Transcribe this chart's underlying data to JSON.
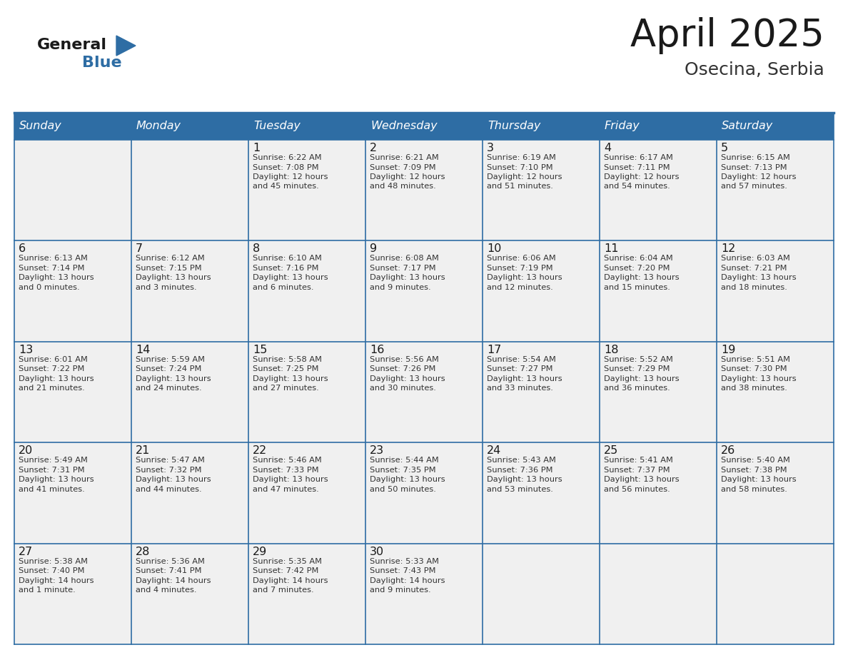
{
  "title": "April 2025",
  "subtitle": "Osecina, Serbia",
  "header_color": "#2E6DA4",
  "header_text_color": "#FFFFFF",
  "background_color": "#FFFFFF",
  "cell_bg_color": "#F0F0F0",
  "border_color": "#2E6DA4",
  "days_of_week": [
    "Sunday",
    "Monday",
    "Tuesday",
    "Wednesday",
    "Thursday",
    "Friday",
    "Saturday"
  ],
  "title_color": "#1a1a1a",
  "subtitle_color": "#333333",
  "cell_text_color": "#333333",
  "day_num_color": "#1a1a1a",
  "logo_general_color": "#1a1a1a",
  "logo_blue_color": "#2E6DA4",
  "logo_triangle_color": "#2E6DA4",
  "weeks": [
    [
      {
        "day": 0,
        "sunrise": "",
        "sunset": "",
        "daylight_l1": "",
        "daylight_l2": ""
      },
      {
        "day": 0,
        "sunrise": "",
        "sunset": "",
        "daylight_l1": "",
        "daylight_l2": ""
      },
      {
        "day": 1,
        "sunrise": "6:22 AM",
        "sunset": "7:08 PM",
        "daylight_l1": "Daylight: 12 hours",
        "daylight_l2": "and 45 minutes."
      },
      {
        "day": 2,
        "sunrise": "6:21 AM",
        "sunset": "7:09 PM",
        "daylight_l1": "Daylight: 12 hours",
        "daylight_l2": "and 48 minutes."
      },
      {
        "day": 3,
        "sunrise": "6:19 AM",
        "sunset": "7:10 PM",
        "daylight_l1": "Daylight: 12 hours",
        "daylight_l2": "and 51 minutes."
      },
      {
        "day": 4,
        "sunrise": "6:17 AM",
        "sunset": "7:11 PM",
        "daylight_l1": "Daylight: 12 hours",
        "daylight_l2": "and 54 minutes."
      },
      {
        "day": 5,
        "sunrise": "6:15 AM",
        "sunset": "7:13 PM",
        "daylight_l1": "Daylight: 12 hours",
        "daylight_l2": "and 57 minutes."
      }
    ],
    [
      {
        "day": 6,
        "sunrise": "6:13 AM",
        "sunset": "7:14 PM",
        "daylight_l1": "Daylight: 13 hours",
        "daylight_l2": "and 0 minutes."
      },
      {
        "day": 7,
        "sunrise": "6:12 AM",
        "sunset": "7:15 PM",
        "daylight_l1": "Daylight: 13 hours",
        "daylight_l2": "and 3 minutes."
      },
      {
        "day": 8,
        "sunrise": "6:10 AM",
        "sunset": "7:16 PM",
        "daylight_l1": "Daylight: 13 hours",
        "daylight_l2": "and 6 minutes."
      },
      {
        "day": 9,
        "sunrise": "6:08 AM",
        "sunset": "7:17 PM",
        "daylight_l1": "Daylight: 13 hours",
        "daylight_l2": "and 9 minutes."
      },
      {
        "day": 10,
        "sunrise": "6:06 AM",
        "sunset": "7:19 PM",
        "daylight_l1": "Daylight: 13 hours",
        "daylight_l2": "and 12 minutes."
      },
      {
        "day": 11,
        "sunrise": "6:04 AM",
        "sunset": "7:20 PM",
        "daylight_l1": "Daylight: 13 hours",
        "daylight_l2": "and 15 minutes."
      },
      {
        "day": 12,
        "sunrise": "6:03 AM",
        "sunset": "7:21 PM",
        "daylight_l1": "Daylight: 13 hours",
        "daylight_l2": "and 18 minutes."
      }
    ],
    [
      {
        "day": 13,
        "sunrise": "6:01 AM",
        "sunset": "7:22 PM",
        "daylight_l1": "Daylight: 13 hours",
        "daylight_l2": "and 21 minutes."
      },
      {
        "day": 14,
        "sunrise": "5:59 AM",
        "sunset": "7:24 PM",
        "daylight_l1": "Daylight: 13 hours",
        "daylight_l2": "and 24 minutes."
      },
      {
        "day": 15,
        "sunrise": "5:58 AM",
        "sunset": "7:25 PM",
        "daylight_l1": "Daylight: 13 hours",
        "daylight_l2": "and 27 minutes."
      },
      {
        "day": 16,
        "sunrise": "5:56 AM",
        "sunset": "7:26 PM",
        "daylight_l1": "Daylight: 13 hours",
        "daylight_l2": "and 30 minutes."
      },
      {
        "day": 17,
        "sunrise": "5:54 AM",
        "sunset": "7:27 PM",
        "daylight_l1": "Daylight: 13 hours",
        "daylight_l2": "and 33 minutes."
      },
      {
        "day": 18,
        "sunrise": "5:52 AM",
        "sunset": "7:29 PM",
        "daylight_l1": "Daylight: 13 hours",
        "daylight_l2": "and 36 minutes."
      },
      {
        "day": 19,
        "sunrise": "5:51 AM",
        "sunset": "7:30 PM",
        "daylight_l1": "Daylight: 13 hours",
        "daylight_l2": "and 38 minutes."
      }
    ],
    [
      {
        "day": 20,
        "sunrise": "5:49 AM",
        "sunset": "7:31 PM",
        "daylight_l1": "Daylight: 13 hours",
        "daylight_l2": "and 41 minutes."
      },
      {
        "day": 21,
        "sunrise": "5:47 AM",
        "sunset": "7:32 PM",
        "daylight_l1": "Daylight: 13 hours",
        "daylight_l2": "and 44 minutes."
      },
      {
        "day": 22,
        "sunrise": "5:46 AM",
        "sunset": "7:33 PM",
        "daylight_l1": "Daylight: 13 hours",
        "daylight_l2": "and 47 minutes."
      },
      {
        "day": 23,
        "sunrise": "5:44 AM",
        "sunset": "7:35 PM",
        "daylight_l1": "Daylight: 13 hours",
        "daylight_l2": "and 50 minutes."
      },
      {
        "day": 24,
        "sunrise": "5:43 AM",
        "sunset": "7:36 PM",
        "daylight_l1": "Daylight: 13 hours",
        "daylight_l2": "and 53 minutes."
      },
      {
        "day": 25,
        "sunrise": "5:41 AM",
        "sunset": "7:37 PM",
        "daylight_l1": "Daylight: 13 hours",
        "daylight_l2": "and 56 minutes."
      },
      {
        "day": 26,
        "sunrise": "5:40 AM",
        "sunset": "7:38 PM",
        "daylight_l1": "Daylight: 13 hours",
        "daylight_l2": "and 58 minutes."
      }
    ],
    [
      {
        "day": 27,
        "sunrise": "5:38 AM",
        "sunset": "7:40 PM",
        "daylight_l1": "Daylight: 14 hours",
        "daylight_l2": "and 1 minute."
      },
      {
        "day": 28,
        "sunrise": "5:36 AM",
        "sunset": "7:41 PM",
        "daylight_l1": "Daylight: 14 hours",
        "daylight_l2": "and 4 minutes."
      },
      {
        "day": 29,
        "sunrise": "5:35 AM",
        "sunset": "7:42 PM",
        "daylight_l1": "Daylight: 14 hours",
        "daylight_l2": "and 7 minutes."
      },
      {
        "day": 30,
        "sunrise": "5:33 AM",
        "sunset": "7:43 PM",
        "daylight_l1": "Daylight: 14 hours",
        "daylight_l2": "and 9 minutes."
      },
      {
        "day": 0,
        "sunrise": "",
        "sunset": "",
        "daylight_l1": "",
        "daylight_l2": ""
      },
      {
        "day": 0,
        "sunrise": "",
        "sunset": "",
        "daylight_l1": "",
        "daylight_l2": ""
      },
      {
        "day": 0,
        "sunrise": "",
        "sunset": "",
        "daylight_l1": "",
        "daylight_l2": ""
      }
    ]
  ]
}
